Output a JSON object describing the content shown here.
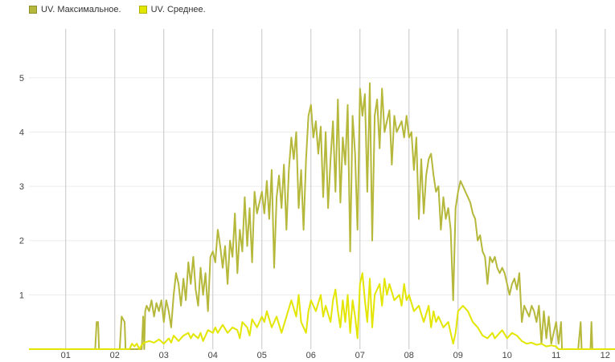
{
  "legend": [
    {
      "label": "UV. Максимальное.",
      "color": "#b5b83a",
      "border": "#8c8f2a"
    },
    {
      "label": "UV. Среднее.",
      "color": "#e3e600",
      "border": "#b0b200"
    }
  ],
  "chart_data": {
    "type": "line",
    "title": "",
    "xlabel": "",
    "ylabel": "",
    "grid": {
      "vertical": true,
      "horizontal": true
    },
    "legend_position": "top-left",
    "x_unit": "month (1 = start of January)",
    "xlim": [
      0.25,
      12.2
    ],
    "ylim": [
      0,
      5.9
    ],
    "y_ticks": [
      1,
      2,
      3,
      4,
      5
    ],
    "x_ticks": [
      {
        "x": 1,
        "label": "01"
      },
      {
        "x": 2,
        "label": "02"
      },
      {
        "x": 3,
        "label": "03"
      },
      {
        "x": 4,
        "label": "04"
      },
      {
        "x": 5,
        "label": "05"
      },
      {
        "x": 6,
        "label": "06"
      },
      {
        "x": 7,
        "label": "07"
      },
      {
        "x": 8,
        "label": "08"
      },
      {
        "x": 9,
        "label": "09"
      },
      {
        "x": 10,
        "label": "10"
      },
      {
        "x": 11,
        "label": "11"
      },
      {
        "x": 12,
        "label": "12"
      }
    ],
    "series": [
      {
        "name": "UV. Максимальное.",
        "color": "#b5b83a",
        "points": [
          [
            0.25,
            0
          ],
          [
            1.6,
            0
          ],
          [
            1.63,
            0.5
          ],
          [
            1.66,
            0.5
          ],
          [
            1.68,
            0
          ],
          [
            2.1,
            0
          ],
          [
            2.14,
            0.6
          ],
          [
            2.2,
            0.5
          ],
          [
            2.22,
            0
          ],
          [
            2.55,
            0
          ],
          [
            2.58,
            0.6
          ],
          [
            2.6,
            0
          ],
          [
            2.62,
            0.7
          ],
          [
            2.65,
            0.8
          ],
          [
            2.7,
            0.7
          ],
          [
            2.75,
            0.9
          ],
          [
            2.8,
            0.6
          ],
          [
            2.85,
            0.85
          ],
          [
            2.9,
            0.7
          ],
          [
            2.95,
            0.9
          ],
          [
            3.0,
            0.5
          ],
          [
            3.05,
            0.9
          ],
          [
            3.1,
            0.7
          ],
          [
            3.15,
            0.4
          ],
          [
            3.2,
            1.0
          ],
          [
            3.25,
            1.4
          ],
          [
            3.3,
            1.2
          ],
          [
            3.35,
            0.8
          ],
          [
            3.4,
            1.3
          ],
          [
            3.45,
            0.9
          ],
          [
            3.5,
            1.6
          ],
          [
            3.55,
            1.2
          ],
          [
            3.6,
            1.7
          ],
          [
            3.65,
            1.1
          ],
          [
            3.7,
            0.8
          ],
          [
            3.75,
            1.5
          ],
          [
            3.8,
            1.0
          ],
          [
            3.85,
            1.4
          ],
          [
            3.9,
            0.7
          ],
          [
            3.95,
            1.7
          ],
          [
            4.0,
            1.8
          ],
          [
            4.05,
            1.6
          ],
          [
            4.1,
            2.2
          ],
          [
            4.15,
            1.9
          ],
          [
            4.2,
            1.5
          ],
          [
            4.25,
            1.9
          ],
          [
            4.3,
            1.2
          ],
          [
            4.35,
            2.0
          ],
          [
            4.4,
            1.7
          ],
          [
            4.45,
            2.5
          ],
          [
            4.5,
            1.4
          ],
          [
            4.55,
            2.2
          ],
          [
            4.6,
            1.8
          ],
          [
            4.65,
            2.8
          ],
          [
            4.7,
            1.9
          ],
          [
            4.75,
            2.6
          ],
          [
            4.8,
            1.6
          ],
          [
            4.85,
            2.9
          ],
          [
            4.9,
            2.5
          ],
          [
            4.95,
            2.7
          ],
          [
            5.0,
            2.9
          ],
          [
            5.05,
            2.5
          ],
          [
            5.1,
            3.1
          ],
          [
            5.15,
            2.4
          ],
          [
            5.2,
            3.3
          ],
          [
            5.25,
            1.5
          ],
          [
            5.3,
            2.8
          ],
          [
            5.35,
            3.2
          ],
          [
            5.4,
            2.6
          ],
          [
            5.45,
            3.4
          ],
          [
            5.5,
            2.2
          ],
          [
            5.55,
            3.3
          ],
          [
            5.6,
            3.9
          ],
          [
            5.65,
            3.5
          ],
          [
            5.7,
            4.0
          ],
          [
            5.75,
            2.6
          ],
          [
            5.8,
            3.3
          ],
          [
            5.85,
            2.2
          ],
          [
            5.9,
            3.5
          ],
          [
            5.95,
            4.3
          ],
          [
            6.0,
            4.5
          ],
          [
            6.05,
            3.9
          ],
          [
            6.1,
            4.2
          ],
          [
            6.15,
            3.6
          ],
          [
            6.2,
            4.1
          ],
          [
            6.25,
            2.8
          ],
          [
            6.3,
            4.0
          ],
          [
            6.35,
            2.6
          ],
          [
            6.4,
            3.5
          ],
          [
            6.45,
            4.2
          ],
          [
            6.5,
            2.9
          ],
          [
            6.55,
            4.6
          ],
          [
            6.6,
            2.7
          ],
          [
            6.65,
            3.9
          ],
          [
            6.7,
            3.4
          ],
          [
            6.75,
            4.5
          ],
          [
            6.8,
            1.8
          ],
          [
            6.85,
            4.3
          ],
          [
            6.9,
            3.6
          ],
          [
            6.95,
            2.2
          ],
          [
            7.0,
            4.8
          ],
          [
            7.05,
            4.3
          ],
          [
            7.1,
            4.7
          ],
          [
            7.15,
            2.9
          ],
          [
            7.2,
            4.9
          ],
          [
            7.25,
            2.0
          ],
          [
            7.3,
            4.3
          ],
          [
            7.35,
            4.6
          ],
          [
            7.4,
            3.7
          ],
          [
            7.45,
            4.8
          ],
          [
            7.5,
            4.0
          ],
          [
            7.55,
            4.2
          ],
          [
            7.6,
            4.4
          ],
          [
            7.65,
            3.4
          ],
          [
            7.7,
            4.3
          ],
          [
            7.75,
            4.0
          ],
          [
            7.8,
            4.1
          ],
          [
            7.85,
            4.2
          ],
          [
            7.9,
            3.9
          ],
          [
            7.95,
            4.3
          ],
          [
            8.0,
            3.9
          ],
          [
            8.05,
            4.0
          ],
          [
            8.1,
            3.3
          ],
          [
            8.15,
            3.9
          ],
          [
            8.2,
            2.4
          ],
          [
            8.25,
            3.5
          ],
          [
            8.3,
            2.5
          ],
          [
            8.35,
            3.2
          ],
          [
            8.4,
            3.5
          ],
          [
            8.45,
            3.6
          ],
          [
            8.5,
            3.2
          ],
          [
            8.55,
            2.9
          ],
          [
            8.6,
            3.0
          ],
          [
            8.65,
            2.2
          ],
          [
            8.7,
            2.8
          ],
          [
            8.75,
            2.4
          ],
          [
            8.8,
            2.6
          ],
          [
            8.85,
            2.2
          ],
          [
            8.9,
            0.9
          ],
          [
            8.95,
            2.6
          ],
          [
            9.0,
            2.9
          ],
          [
            9.05,
            3.1
          ],
          [
            9.1,
            3.0
          ],
          [
            9.15,
            2.9
          ],
          [
            9.2,
            2.8
          ],
          [
            9.25,
            2.7
          ],
          [
            9.3,
            2.5
          ],
          [
            9.35,
            2.4
          ],
          [
            9.4,
            2.0
          ],
          [
            9.45,
            2.1
          ],
          [
            9.5,
            1.8
          ],
          [
            9.55,
            1.7
          ],
          [
            9.6,
            1.2
          ],
          [
            9.65,
            1.7
          ],
          [
            9.7,
            1.6
          ],
          [
            9.75,
            1.7
          ],
          [
            9.8,
            1.5
          ],
          [
            9.85,
            1.4
          ],
          [
            9.9,
            1.5
          ],
          [
            9.95,
            1.4
          ],
          [
            10.0,
            1.2
          ],
          [
            10.05,
            1.0
          ],
          [
            10.1,
            1.2
          ],
          [
            10.15,
            1.3
          ],
          [
            10.2,
            1.1
          ],
          [
            10.25,
            1.4
          ],
          [
            10.3,
            0.5
          ],
          [
            10.35,
            0.8
          ],
          [
            10.4,
            0.7
          ],
          [
            10.45,
            0.6
          ],
          [
            10.5,
            0.8
          ],
          [
            10.55,
            0.7
          ],
          [
            10.6,
            0.5
          ],
          [
            10.65,
            0.8
          ],
          [
            10.7,
            0.1
          ],
          [
            10.75,
            0.7
          ],
          [
            10.8,
            0.2
          ],
          [
            10.85,
            0.6
          ],
          [
            10.9,
            0.1
          ],
          [
            10.95,
            0.3
          ],
          [
            11.0,
            0.5
          ],
          [
            11.05,
            0.1
          ],
          [
            11.1,
            0.5
          ],
          [
            11.12,
            0
          ],
          [
            11.45,
            0
          ],
          [
            11.5,
            0.5
          ],
          [
            11.52,
            0
          ],
          [
            11.7,
            0
          ],
          [
            11.72,
            0.5
          ],
          [
            11.74,
            0
          ],
          [
            12.2,
            0
          ]
        ]
      },
      {
        "name": "UV. Среднее.",
        "color": "#e3e600",
        "points": [
          [
            0.25,
            0
          ],
          [
            2.3,
            0
          ],
          [
            2.35,
            0.1
          ],
          [
            2.4,
            0.05
          ],
          [
            2.45,
            0.1
          ],
          [
            2.5,
            0
          ],
          [
            2.55,
            0.08
          ],
          [
            2.6,
            0.12
          ],
          [
            2.7,
            0.15
          ],
          [
            2.8,
            0.12
          ],
          [
            2.9,
            0.18
          ],
          [
            3.0,
            0.1
          ],
          [
            3.05,
            0.15
          ],
          [
            3.1,
            0.2
          ],
          [
            3.15,
            0.12
          ],
          [
            3.2,
            0.25
          ],
          [
            3.3,
            0.15
          ],
          [
            3.4,
            0.25
          ],
          [
            3.5,
            0.3
          ],
          [
            3.55,
            0.2
          ],
          [
            3.6,
            0.28
          ],
          [
            3.7,
            0.2
          ],
          [
            3.75,
            0.3
          ],
          [
            3.8,
            0.15
          ],
          [
            3.9,
            0.35
          ],
          [
            4.0,
            0.3
          ],
          [
            4.05,
            0.4
          ],
          [
            4.1,
            0.3
          ],
          [
            4.2,
            0.45
          ],
          [
            4.3,
            0.3
          ],
          [
            4.4,
            0.4
          ],
          [
            4.5,
            0.35
          ],
          [
            4.55,
            0.2
          ],
          [
            4.6,
            0.5
          ],
          [
            4.7,
            0.4
          ],
          [
            4.75,
            0.25
          ],
          [
            4.8,
            0.55
          ],
          [
            4.9,
            0.4
          ],
          [
            5.0,
            0.6
          ],
          [
            5.05,
            0.5
          ],
          [
            5.1,
            0.7
          ],
          [
            5.2,
            0.4
          ],
          [
            5.3,
            0.6
          ],
          [
            5.4,
            0.3
          ],
          [
            5.5,
            0.6
          ],
          [
            5.6,
            0.9
          ],
          [
            5.7,
            0.6
          ],
          [
            5.75,
            1.0
          ],
          [
            5.8,
            0.5
          ],
          [
            5.9,
            0.3
          ],
          [
            5.95,
            0.7
          ],
          [
            6.0,
            0.9
          ],
          [
            6.1,
            0.7
          ],
          [
            6.2,
            1.0
          ],
          [
            6.25,
            0.6
          ],
          [
            6.3,
            0.8
          ],
          [
            6.4,
            0.5
          ],
          [
            6.45,
            0.9
          ],
          [
            6.5,
            1.1
          ],
          [
            6.55,
            0.7
          ],
          [
            6.6,
            0.4
          ],
          [
            6.65,
            0.9
          ],
          [
            6.7,
            0.5
          ],
          [
            6.75,
            1.0
          ],
          [
            6.8,
            0.3
          ],
          [
            6.85,
            0.9
          ],
          [
            6.9,
            0.6
          ],
          [
            6.95,
            0.2
          ],
          [
            7.0,
            1.2
          ],
          [
            7.05,
            1.4
          ],
          [
            7.1,
            0.9
          ],
          [
            7.15,
            0.5
          ],
          [
            7.2,
            1.3
          ],
          [
            7.25,
            0.4
          ],
          [
            7.3,
            1.0
          ],
          [
            7.4,
            1.2
          ],
          [
            7.45,
            0.8
          ],
          [
            7.5,
            1.3
          ],
          [
            7.55,
            1.0
          ],
          [
            7.6,
            1.2
          ],
          [
            7.7,
            0.9
          ],
          [
            7.8,
            1.0
          ],
          [
            7.85,
            0.8
          ],
          [
            7.9,
            1.2
          ],
          [
            7.95,
            0.9
          ],
          [
            8.0,
            1.0
          ],
          [
            8.1,
            0.7
          ],
          [
            8.2,
            0.8
          ],
          [
            8.3,
            0.5
          ],
          [
            8.4,
            0.8
          ],
          [
            8.45,
            0.4
          ],
          [
            8.5,
            0.7
          ],
          [
            8.55,
            0.5
          ],
          [
            8.6,
            0.6
          ],
          [
            8.7,
            0.4
          ],
          [
            8.8,
            0.5
          ],
          [
            8.85,
            0.3
          ],
          [
            8.9,
            0.1
          ],
          [
            8.95,
            0.3
          ],
          [
            9.0,
            0.7
          ],
          [
            9.1,
            0.8
          ],
          [
            9.2,
            0.7
          ],
          [
            9.3,
            0.5
          ],
          [
            9.4,
            0.4
          ],
          [
            9.5,
            0.25
          ],
          [
            9.6,
            0.2
          ],
          [
            9.7,
            0.3
          ],
          [
            9.75,
            0.2
          ],
          [
            9.8,
            0.25
          ],
          [
            9.9,
            0.35
          ],
          [
            10.0,
            0.2
          ],
          [
            10.1,
            0.3
          ],
          [
            10.2,
            0.25
          ],
          [
            10.3,
            0.15
          ],
          [
            10.4,
            0.1
          ],
          [
            10.5,
            0.12
          ],
          [
            10.6,
            0.08
          ],
          [
            10.7,
            0.1
          ],
          [
            10.8,
            0.05
          ],
          [
            10.9,
            0.07
          ],
          [
            11.0,
            0.05
          ],
          [
            11.05,
            0
          ],
          [
            12.2,
            0
          ]
        ]
      }
    ]
  }
}
